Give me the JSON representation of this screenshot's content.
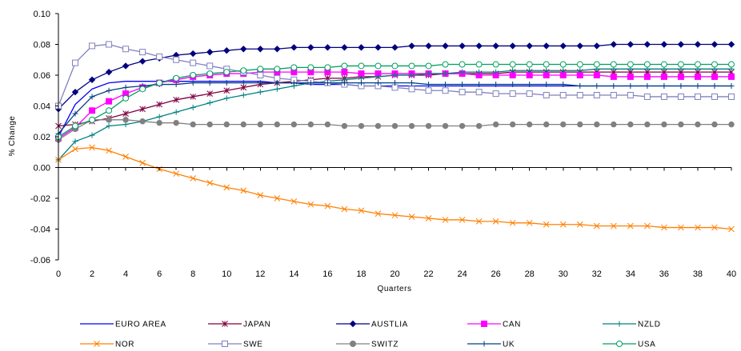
{
  "chart_data": {
    "type": "line",
    "xlabel": "Quarters",
    "ylabel": "% Change",
    "xlim": [
      0,
      40
    ],
    "ylim": [
      -0.06,
      0.1
    ],
    "x_ticks": [
      0,
      2,
      4,
      6,
      8,
      10,
      12,
      14,
      16,
      18,
      20,
      22,
      24,
      26,
      28,
      30,
      32,
      34,
      36,
      38,
      40
    ],
    "y_ticks": [
      -0.06,
      -0.04,
      -0.02,
      0.0,
      0.02,
      0.04,
      0.06,
      0.08,
      0.1
    ],
    "y_tick_labels": [
      "-0.06",
      "-0.04",
      "-0.02",
      "0.00",
      "0.02",
      "0.04",
      "0.06",
      "0.08",
      "0.10"
    ],
    "grid": false,
    "legend_position": "bottom",
    "x": [
      0,
      1,
      2,
      3,
      4,
      5,
      6,
      7,
      8,
      9,
      10,
      11,
      12,
      13,
      14,
      15,
      16,
      17,
      18,
      19,
      20,
      21,
      22,
      23,
      24,
      25,
      26,
      27,
      28,
      29,
      30,
      31,
      32,
      33,
      34,
      35,
      36,
      37,
      38,
      39,
      40
    ],
    "series": [
      {
        "name": "EURO AREA",
        "color": "#0000ff",
        "marker": "none",
        "values": [
          0.02,
          0.041,
          0.051,
          0.055,
          0.056,
          0.056,
          0.056,
          0.056,
          0.056,
          0.056,
          0.056,
          0.056,
          0.056,
          0.055,
          0.055,
          0.054,
          0.054,
          0.054,
          0.053,
          0.053,
          0.053,
          0.053,
          0.053,
          0.053,
          0.053,
          0.053,
          0.053,
          0.053,
          0.053,
          0.053,
          0.053,
          0.053,
          0.053,
          0.053,
          0.053,
          0.053,
          0.053,
          0.053,
          0.053,
          0.053,
          0.053
        ]
      },
      {
        "name": "JAPAN",
        "color": "#800040",
        "marker": "star",
        "values": [
          0.027,
          0.028,
          0.03,
          0.032,
          0.035,
          0.038,
          0.041,
          0.044,
          0.046,
          0.048,
          0.05,
          0.052,
          0.054,
          0.055,
          0.056,
          0.057,
          0.058,
          0.058,
          0.059,
          0.059,
          0.06,
          0.06,
          0.06,
          0.061,
          0.061,
          0.061,
          0.061,
          0.062,
          0.062,
          0.062,
          0.062,
          0.062,
          0.062,
          0.062,
          0.062,
          0.062,
          0.062,
          0.062,
          0.062,
          0.062,
          0.062
        ]
      },
      {
        "name": "AUSTLIA",
        "color": "#000080",
        "marker": "diamond",
        "values": [
          0.038,
          0.049,
          0.057,
          0.062,
          0.066,
          0.069,
          0.071,
          0.073,
          0.074,
          0.075,
          0.076,
          0.077,
          0.077,
          0.077,
          0.078,
          0.078,
          0.078,
          0.078,
          0.078,
          0.078,
          0.078,
          0.079,
          0.079,
          0.079,
          0.079,
          0.079,
          0.079,
          0.079,
          0.079,
          0.079,
          0.079,
          0.079,
          0.079,
          0.08,
          0.08,
          0.08,
          0.08,
          0.08,
          0.08,
          0.08,
          0.08
        ]
      },
      {
        "name": "CAN",
        "color": "#ff00ff",
        "marker": "square-filled",
        "values": [
          0.019,
          0.026,
          0.037,
          0.043,
          0.048,
          0.052,
          0.055,
          0.057,
          0.059,
          0.06,
          0.061,
          0.061,
          0.062,
          0.062,
          0.062,
          0.062,
          0.062,
          0.062,
          0.061,
          0.061,
          0.061,
          0.061,
          0.061,
          0.061,
          0.061,
          0.06,
          0.06,
          0.06,
          0.06,
          0.06,
          0.06,
          0.06,
          0.06,
          0.059,
          0.059,
          0.059,
          0.059,
          0.059,
          0.059,
          0.059,
          0.059
        ]
      },
      {
        "name": "NZLD",
        "color": "#008080",
        "marker": "plus",
        "values": [
          0.005,
          0.017,
          0.021,
          0.027,
          0.028,
          0.03,
          0.033,
          0.036,
          0.039,
          0.042,
          0.045,
          0.047,
          0.049,
          0.051,
          0.053,
          0.055,
          0.056,
          0.057,
          0.058,
          0.059,
          0.06,
          0.06,
          0.061,
          0.061,
          0.062,
          0.062,
          0.062,
          0.063,
          0.063,
          0.063,
          0.063,
          0.063,
          0.064,
          0.064,
          0.064,
          0.064,
          0.064,
          0.064,
          0.064,
          0.064,
          0.064
        ]
      },
      {
        "name": "NOR",
        "color": "#ff8000",
        "marker": "x",
        "values": [
          0.005,
          0.012,
          0.013,
          0.011,
          0.007,
          0.003,
          -0.001,
          -0.004,
          -0.007,
          -0.01,
          -0.013,
          -0.015,
          -0.018,
          -0.02,
          -0.022,
          -0.024,
          -0.025,
          -0.027,
          -0.028,
          -0.03,
          -0.031,
          -0.032,
          -0.033,
          -0.034,
          -0.034,
          -0.035,
          -0.035,
          -0.036,
          -0.036,
          -0.037,
          -0.037,
          -0.037,
          -0.038,
          -0.038,
          -0.038,
          -0.038,
          -0.039,
          -0.039,
          -0.039,
          -0.039,
          -0.04
        ]
      },
      {
        "name": "SWE",
        "color": "#8080c0",
        "marker": "square-open",
        "values": [
          0.04,
          0.068,
          0.079,
          0.08,
          0.077,
          0.075,
          0.072,
          0.07,
          0.068,
          0.066,
          0.064,
          0.062,
          0.06,
          0.058,
          0.057,
          0.056,
          0.055,
          0.054,
          0.053,
          0.053,
          0.052,
          0.051,
          0.05,
          0.05,
          0.049,
          0.049,
          0.048,
          0.048,
          0.048,
          0.047,
          0.047,
          0.047,
          0.047,
          0.047,
          0.047,
          0.046,
          0.046,
          0.046,
          0.046,
          0.046,
          0.046
        ]
      },
      {
        "name": "SWITZ",
        "color": "#808080",
        "marker": "circle-filled",
        "values": [
          0.018,
          0.025,
          0.031,
          0.031,
          0.031,
          0.03,
          0.029,
          0.029,
          0.028,
          0.028,
          0.028,
          0.028,
          0.028,
          0.028,
          0.028,
          0.028,
          0.028,
          0.027,
          0.027,
          0.027,
          0.027,
          0.027,
          0.027,
          0.027,
          0.027,
          0.027,
          0.028,
          0.028,
          0.028,
          0.028,
          0.028,
          0.028,
          0.028,
          0.028,
          0.028,
          0.028,
          0.028,
          0.028,
          0.028,
          0.028,
          0.028
        ]
      },
      {
        "name": "UK",
        "color": "#004080",
        "marker": "plus",
        "values": [
          0.022,
          0.035,
          0.046,
          0.05,
          0.052,
          0.053,
          0.054,
          0.054,
          0.055,
          0.055,
          0.055,
          0.055,
          0.055,
          0.055,
          0.055,
          0.055,
          0.055,
          0.055,
          0.055,
          0.055,
          0.055,
          0.055,
          0.054,
          0.054,
          0.054,
          0.054,
          0.054,
          0.054,
          0.054,
          0.054,
          0.054,
          0.053,
          0.053,
          0.053,
          0.053,
          0.053,
          0.053,
          0.053,
          0.053,
          0.053,
          0.053
        ]
      },
      {
        "name": "USA",
        "color": "#00a060",
        "marker": "circle-open",
        "values": [
          0.02,
          0.027,
          0.031,
          0.037,
          0.045,
          0.051,
          0.055,
          0.058,
          0.06,
          0.061,
          0.062,
          0.063,
          0.064,
          0.064,
          0.065,
          0.065,
          0.065,
          0.066,
          0.066,
          0.066,
          0.066,
          0.066,
          0.066,
          0.067,
          0.067,
          0.067,
          0.067,
          0.067,
          0.067,
          0.067,
          0.067,
          0.067,
          0.067,
          0.067,
          0.067,
          0.067,
          0.067,
          0.067,
          0.067,
          0.067,
          0.067
        ]
      }
    ]
  }
}
